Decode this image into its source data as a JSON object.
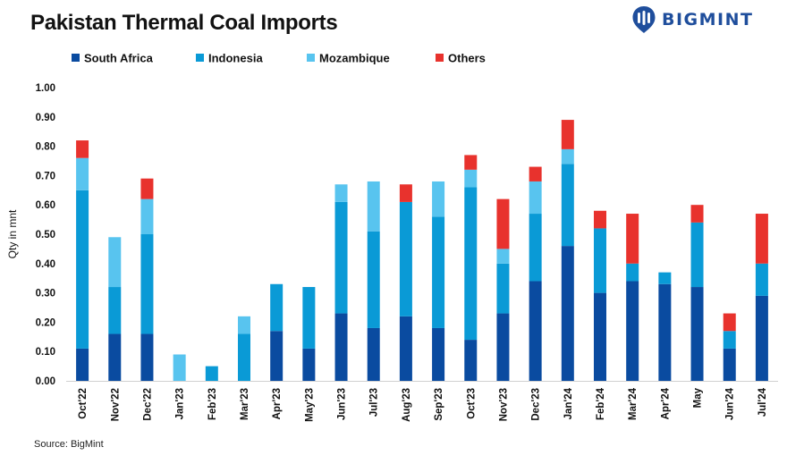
{
  "header": {
    "title": "Pakistan Thermal Coal Imports",
    "brand": "BIGMINT"
  },
  "footer": {
    "source": "Source: BigMint"
  },
  "chart_data": {
    "type": "bar",
    "stacked": true,
    "title": "Pakistan Thermal Coal Imports",
    "xlabel": "",
    "ylabel": "Qty in mnt",
    "ylim": [
      0,
      1.0
    ],
    "yticks": [
      0,
      0.1,
      0.2,
      0.3,
      0.4,
      0.5,
      0.6,
      0.7,
      0.8,
      0.9,
      1.0
    ],
    "ytick_labels": [
      "0.00",
      "0.10",
      "0.20",
      "0.30",
      "0.40",
      "0.50",
      "0.60",
      "0.70",
      "0.80",
      "0.90",
      "1.00"
    ],
    "categories": [
      "Oct'22",
      "Nov'22",
      "Dec'22",
      "Jan'23",
      "Feb'23",
      "Mar'23",
      "Apr'23",
      "May'23",
      "Jun'23",
      "Jul'23",
      "Aug'23",
      "Sep'23",
      "Oct'23",
      "Nov'23",
      "Dec'23",
      "Jan'24",
      "Feb'24",
      "Mar'24",
      "Apr'24",
      "May",
      "Jun'24",
      "Jul'24"
    ],
    "series": [
      {
        "name": "South Africa",
        "color": "#0a4ba0",
        "values": [
          0.11,
          0.16,
          0.16,
          0,
          0,
          0,
          0.17,
          0.11,
          0.23,
          0.18,
          0.22,
          0.18,
          0.14,
          0.23,
          0.34,
          0.46,
          0.3,
          0.34,
          0.33,
          0.32,
          0.11,
          0.29
        ]
      },
      {
        "name": "Indonesia",
        "color": "#0a9ad6",
        "values": [
          0.54,
          0.16,
          0.34,
          0,
          0.05,
          0.16,
          0.16,
          0.21,
          0.38,
          0.33,
          0.39,
          0.38,
          0.52,
          0.17,
          0.23,
          0.28,
          0.22,
          0.06,
          0.04,
          0.22,
          0.06,
          0.11
        ]
      },
      {
        "name": "Mozambique",
        "color": "#58c4ef",
        "values": [
          0.11,
          0.17,
          0.12,
          0.09,
          0,
          0.06,
          0,
          0,
          0.06,
          0.17,
          0,
          0.12,
          0.06,
          0.05,
          0.11,
          0.05,
          0,
          0,
          0,
          0,
          0,
          0
        ]
      },
      {
        "name": "Others",
        "color": "#e8322d",
        "values": [
          0.06,
          0,
          0.07,
          0,
          0,
          0,
          0,
          0,
          0,
          0,
          0.06,
          0,
          0.05,
          0.17,
          0.05,
          0.1,
          0.06,
          0.17,
          0,
          0.06,
          0.06,
          0.17
        ]
      }
    ],
    "legend": {
      "position": "top-left",
      "orientation": "horizontal"
    },
    "grid": false
  }
}
